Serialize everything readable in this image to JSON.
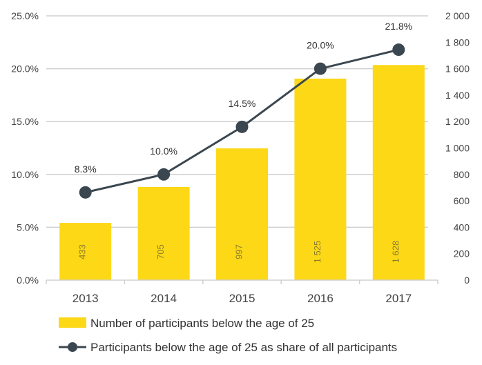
{
  "chart_data": {
    "type": "bar",
    "categories": [
      "2013",
      "2014",
      "2015",
      "2016",
      "2017"
    ],
    "series": [
      {
        "name": "Number of participants below the age of 25",
        "type": "bar",
        "axis": "right",
        "values": [
          433,
          705,
          997,
          1525,
          1628
        ],
        "labels": [
          "433",
          "705",
          "997",
          "1 525",
          "1 628"
        ],
        "color": "#FDD817"
      },
      {
        "name": "Participants below the age of 25 as share of all participants",
        "type": "line",
        "axis": "left",
        "values": [
          8.3,
          10.0,
          14.5,
          20.0,
          21.8
        ],
        "labels": [
          "8.3%",
          "10.0%",
          "14.5%",
          "20.0%",
          "21.8%"
        ],
        "color": "#3B4750"
      }
    ],
    "y_left": {
      "ylim": [
        0,
        25
      ],
      "ticks": [
        "0.0%",
        "5.0%",
        "10.0%",
        "15.0%",
        "20.0%",
        "25.0%"
      ]
    },
    "y_right": {
      "ylim": [
        0,
        2000
      ],
      "ticks": [
        "0",
        "200",
        "400",
        "600",
        "800",
        "1 000",
        "1 200",
        "1 400",
        "1 600",
        "1 800",
        "2 000"
      ]
    },
    "grid": true,
    "legend": "bottom"
  }
}
